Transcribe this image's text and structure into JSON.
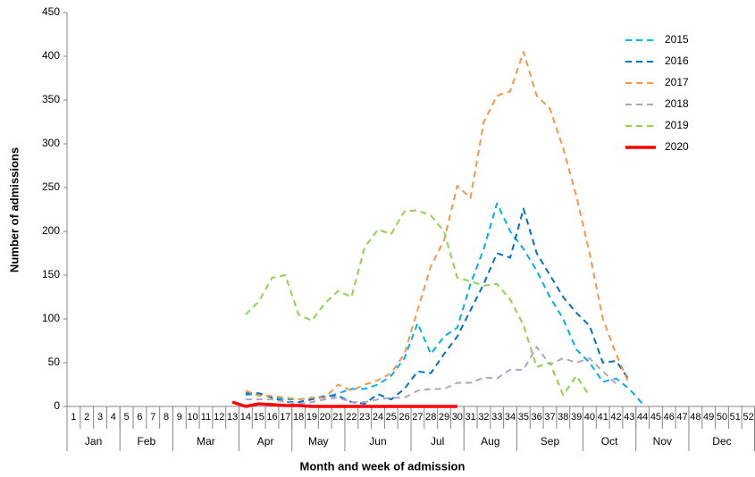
{
  "chart_data": {
    "type": "line",
    "ylabel": "Number of admissions",
    "xlabel": "Month and week of admission",
    "categories": [
      "1",
      "2",
      "3",
      "4",
      "5",
      "6",
      "7",
      "8",
      "9",
      "10",
      "11",
      "12",
      "13",
      "14",
      "15",
      "16",
      "17",
      "18",
      "19",
      "20",
      "21",
      "22",
      "23",
      "24",
      "25",
      "26",
      "27",
      "28",
      "29",
      "30",
      "31",
      "32",
      "33",
      "34",
      "35",
      "36",
      "37",
      "38",
      "39",
      "40",
      "41",
      "42",
      "43",
      "44",
      "45",
      "46",
      "47",
      "48",
      "49",
      "50",
      "51",
      "52"
    ],
    "month_groups": [
      {
        "label": "Jan",
        "span": 4
      },
      {
        "label": "Feb",
        "span": 4
      },
      {
        "label": "Mar",
        "span": 5
      },
      {
        "label": "Apr",
        "span": 4
      },
      {
        "label": "May",
        "span": 4
      },
      {
        "label": "Jun",
        "span": 5
      },
      {
        "label": "Jul",
        "span": 4
      },
      {
        "label": "Aug",
        "span": 4
      },
      {
        "label": "Sep",
        "span": 5
      },
      {
        "label": "Oct",
        "span": 4
      },
      {
        "label": "Nov",
        "span": 4
      },
      {
        "label": "Dec",
        "span": 5
      }
    ],
    "ylim": [
      0,
      450
    ],
    "yticks": [
      0,
      50,
      100,
      150,
      200,
      250,
      300,
      350,
      400,
      450
    ],
    "grid": false,
    "legend": "upper right",
    "series": [
      {
        "name": "2015",
        "color": "#00b0f0",
        "line_style": "dashed",
        "values": [
          null,
          null,
          null,
          null,
          null,
          null,
          null,
          null,
          null,
          null,
          null,
          null,
          null,
          13,
          15,
          10,
          8,
          8,
          10,
          10,
          15,
          20,
          20,
          25,
          35,
          55,
          95,
          60,
          80,
          90,
          140,
          180,
          232,
          200,
          180,
          155,
          125,
          100,
          65,
          50,
          28,
          32,
          20,
          3,
          null,
          null,
          null,
          null,
          null,
          null,
          null,
          null
        ]
      },
      {
        "name": "2016",
        "color": "#0070c0",
        "line_style": "dashed",
        "values": [
          null,
          null,
          null,
          null,
          null,
          null,
          null,
          null,
          null,
          null,
          null,
          null,
          null,
          15,
          15,
          10,
          5,
          5,
          8,
          12,
          12,
          5,
          3,
          14,
          8,
          20,
          40,
          38,
          60,
          80,
          110,
          140,
          175,
          170,
          226,
          175,
          150,
          125,
          107,
          92,
          50,
          52,
          30,
          null,
          null,
          null,
          null,
          null,
          null,
          null,
          null,
          null
        ]
      },
      {
        "name": "2017",
        "color": "#f79646",
        "line_style": "dashed",
        "values": [
          null,
          null,
          null,
          null,
          null,
          null,
          null,
          null,
          null,
          null,
          null,
          null,
          null,
          18,
          12,
          12,
          10,
          8,
          10,
          10,
          25,
          18,
          25,
          30,
          38,
          60,
          110,
          160,
          190,
          252,
          238,
          325,
          355,
          360,
          405,
          355,
          340,
          295,
          240,
          175,
          100,
          60,
          25,
          null,
          null,
          null,
          null,
          null,
          null,
          null,
          null,
          null
        ]
      },
      {
        "name": "2018",
        "color": "#b3a2c7",
        "line_style": "dashed",
        "values": [
          null,
          null,
          null,
          null,
          null,
          null,
          null,
          null,
          null,
          null,
          null,
          null,
          null,
          8,
          8,
          8,
          5,
          3,
          5,
          8,
          10,
          5,
          5,
          8,
          10,
          10,
          18,
          20,
          20,
          27,
          27,
          33,
          32,
          42,
          42,
          68,
          48,
          55,
          50,
          55,
          40,
          26,
          null,
          null,
          null,
          null,
          null,
          null,
          null,
          null,
          null,
          null
        ]
      },
      {
        "name": "2019",
        "color": "#92d050",
        "line_style": "dashed",
        "values": [
          null,
          null,
          null,
          null,
          null,
          null,
          null,
          null,
          null,
          null,
          null,
          null,
          null,
          105,
          120,
          147,
          150,
          105,
          98,
          118,
          132,
          125,
          182,
          202,
          197,
          223,
          224,
          218,
          200,
          147,
          143,
          138,
          140,
          122,
          93,
          45,
          50,
          13,
          35,
          12,
          null,
          null,
          null,
          null,
          null,
          null,
          null,
          null,
          null,
          null,
          null,
          null
        ]
      },
      {
        "name": "2020",
        "color": "#ff0000",
        "line_style": "solid",
        "values": [
          null,
          null,
          null,
          null,
          null,
          null,
          null,
          null,
          null,
          null,
          null,
          null,
          5,
          0,
          3,
          2,
          1,
          1,
          0,
          0,
          0,
          0,
          0,
          0,
          0,
          0,
          0,
          0,
          0,
          0,
          null,
          null,
          null,
          null,
          null,
          null,
          null,
          null,
          null,
          null,
          null,
          null,
          null,
          null,
          null,
          null,
          null,
          null,
          null,
          null,
          null,
          null
        ]
      }
    ]
  }
}
